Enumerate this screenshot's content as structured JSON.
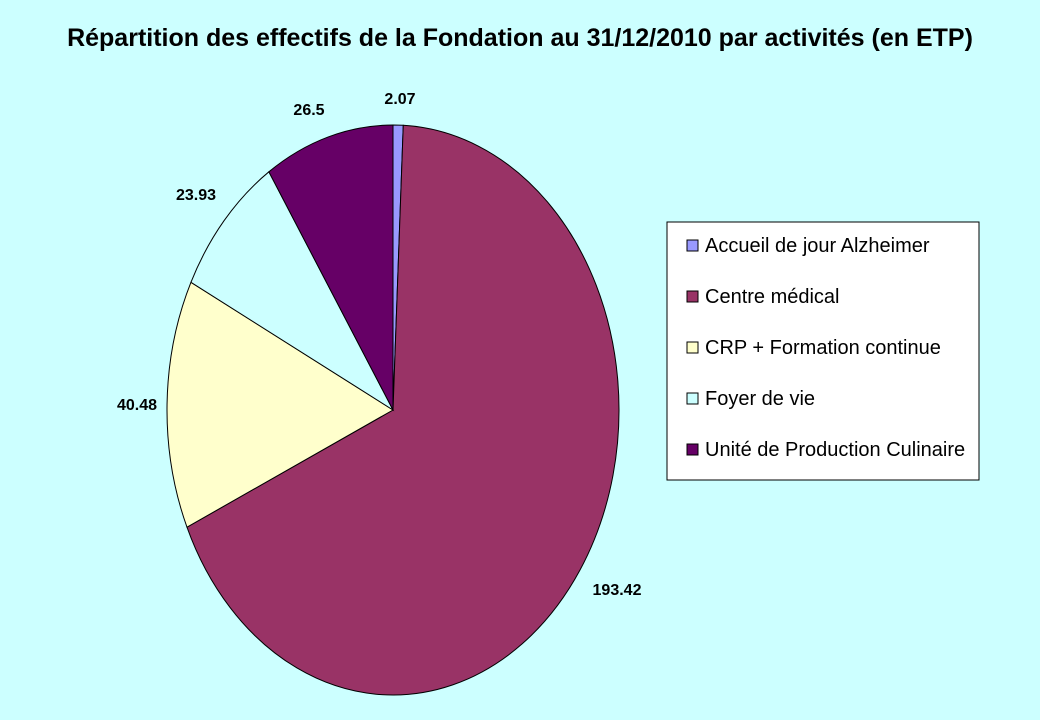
{
  "chart_data": {
    "type": "pie",
    "title": "Répartition des effectifs de la Fondation au 31/12/2010 par activités (en ETP)",
    "slices": [
      {
        "label": "Accueil de jour Alzheimer",
        "value": 2.07,
        "value_label": "2.07",
        "color": "#9999ff"
      },
      {
        "label": "Centre médical",
        "value": 193.42,
        "value_label": "193.42",
        "color": "#993366"
      },
      {
        "label": "CRP + Formation continue",
        "value": 40.48,
        "value_label": "40.48",
        "color": "#ffffcc"
      },
      {
        "label": "Foyer de vie",
        "value": 23.93,
        "value_label": "23.93",
        "color": "#ccffff"
      },
      {
        "label": "Unité de Production Culinaire",
        "value": 26.5,
        "value_label": "26.5",
        "color": "#660066"
      }
    ],
    "legend_position": "right",
    "background_color": "#ccffff",
    "slice_border_color": "#000000"
  }
}
